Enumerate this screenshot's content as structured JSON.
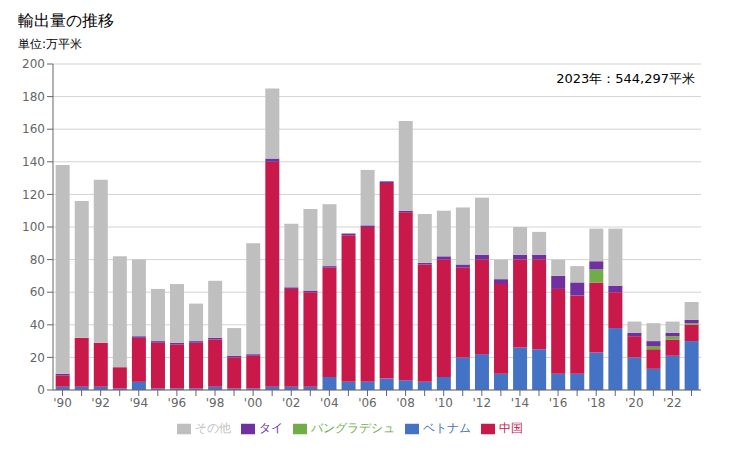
{
  "chart_data": {
    "type": "bar",
    "title": "輸出量の推移",
    "y_label": "単位:万平米",
    "annotation": "2023年：544,297平米",
    "stacked": true,
    "grid": true,
    "legend": "bottom",
    "categories": [
      "'90",
      null,
      "'92",
      null,
      "'94",
      null,
      "'96",
      null,
      "'98",
      null,
      "'00",
      null,
      "'02",
      null,
      "'04",
      null,
      "'06",
      null,
      "'08",
      null,
      "'10",
      null,
      "'12",
      null,
      "'14",
      null,
      "'16",
      null,
      "'18",
      null,
      "'20",
      null,
      "'22",
      null
    ],
    "series": [
      {
        "name": "ベトナム",
        "color": "#4472c4",
        "values": [
          2,
          2,
          2,
          1,
          5,
          1,
          1,
          1,
          2,
          1,
          1,
          2,
          2,
          2,
          8,
          5,
          5,
          7,
          6,
          5,
          8,
          20,
          22,
          10,
          26,
          25,
          10,
          10,
          23,
          38,
          20,
          13,
          21,
          30
        ]
      },
      {
        "name": "中国",
        "color": "#c9184a",
        "values": [
          7,
          30,
          27,
          13,
          27,
          28,
          27,
          28,
          29,
          19,
          20,
          138,
          60,
          58,
          67,
          90,
          95,
          120,
          103,
          72,
          72,
          55,
          58,
          55,
          54,
          55,
          52,
          48,
          43,
          22,
          13,
          12,
          10,
          10
        ]
      },
      {
        "name": "バングラデシュ",
        "color": "#70ad47",
        "values": [
          0,
          0,
          0,
          0,
          0,
          0,
          0,
          0,
          0,
          0,
          0,
          0,
          0,
          0,
          0,
          0,
          0,
          0,
          0,
          0,
          0,
          0,
          0,
          0,
          0,
          0,
          0,
          0,
          8,
          0,
          0,
          2,
          2,
          1
        ]
      },
      {
        "name": "タイ",
        "color": "#7030a0",
        "values": [
          1,
          0,
          0,
          0,
          1,
          1,
          1,
          1,
          1,
          1,
          1,
          2,
          1,
          1,
          1,
          1,
          1,
          1,
          1,
          1,
          2,
          2,
          3,
          3,
          3,
          3,
          8,
          8,
          5,
          4,
          2,
          3,
          2,
          2
        ]
      },
      {
        "name": "その他",
        "color": "#bfbfbf",
        "values": [
          128,
          84,
          100,
          68,
          47,
          32,
          36,
          23,
          35,
          17,
          68,
          43,
          39,
          50,
          38,
          0,
          34,
          0,
          55,
          30,
          28,
          35,
          35,
          12,
          17,
          14,
          10,
          10,
          20,
          35,
          7,
          11,
          7,
          11
        ]
      }
    ],
    "ylim": [
      0,
      200
    ],
    "yticks": [
      0,
      20,
      40,
      60,
      80,
      100,
      120,
      140,
      160,
      180,
      200
    ]
  }
}
